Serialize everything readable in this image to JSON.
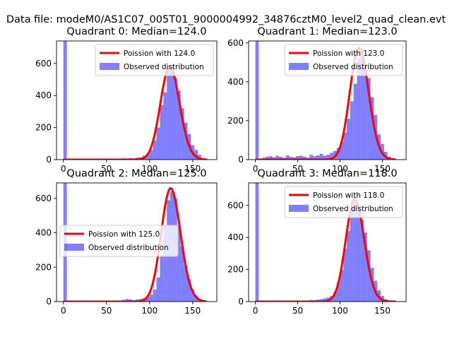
{
  "suptitle": "Data file: modeM0/AS1C07_005T01_9000004992_34876cztM0_level2_quad_clean.evt",
  "colors": {
    "poisson": "#ff0000",
    "observed": "#0000ff"
  },
  "chart_data": [
    {
      "type": "bar",
      "title": "Quadrant 0: Median=124.0",
      "median": 124.0,
      "xlim": [
        -8,
        178
      ],
      "ylim": [
        0,
        740
      ],
      "xticks": [
        0,
        50,
        100,
        150
      ],
      "yticks": [
        0,
        200,
        400,
        600
      ],
      "legend_loc": "top-right",
      "legend": [
        "Poission with 124.0",
        "Observed distribution"
      ],
      "poisson_peak": 580,
      "zero_bin": 740,
      "hist": {
        "bin_width": 4,
        "x": [
          64,
          68,
          72,
          76,
          80,
          84,
          88,
          92,
          96,
          100,
          104,
          108,
          112,
          116,
          120,
          124,
          128,
          132,
          136,
          140,
          144,
          148,
          152,
          156,
          160,
          164
        ],
        "y": [
          5,
          8,
          3,
          10,
          8,
          12,
          15,
          25,
          35,
          60,
          120,
          200,
          340,
          420,
          560,
          590,
          510,
          430,
          320,
          230,
          160,
          90,
          60,
          30,
          10,
          5
        ]
      }
    },
    {
      "type": "bar",
      "title": "Quadrant 1: Median=123.0",
      "median": 123.0,
      "xlim": [
        -8,
        178
      ],
      "ylim": [
        0,
        610
      ],
      "xticks": [
        0,
        50,
        100,
        150
      ],
      "yticks": [
        0,
        200,
        400,
        600
      ],
      "legend_loc": "top-right",
      "legend": [
        "Poission with 123.0",
        "Observed distribution"
      ],
      "poisson_peak": 575,
      "zero_bin": 610,
      "hist": {
        "bin_width": 4,
        "x": [
          8,
          12,
          16,
          20,
          24,
          28,
          32,
          36,
          40,
          44,
          48,
          52,
          56,
          60,
          64,
          68,
          72,
          76,
          80,
          84,
          88,
          92,
          96,
          100,
          104,
          108,
          112,
          116,
          120,
          124,
          128,
          132,
          136,
          140,
          144,
          148,
          152,
          156,
          160
        ],
        "y": [
          10,
          15,
          18,
          12,
          20,
          14,
          10,
          22,
          15,
          12,
          18,
          20,
          15,
          10,
          25,
          18,
          22,
          30,
          20,
          25,
          35,
          45,
          60,
          90,
          140,
          210,
          300,
          390,
          520,
          570,
          490,
          420,
          320,
          230,
          130,
          80,
          40,
          15,
          5
        ]
      }
    },
    {
      "type": "bar",
      "title": "Quadrant 2: Median=125.0",
      "median": 125.0,
      "xlim": [
        -8,
        178
      ],
      "ylim": [
        0,
        690
      ],
      "xticks": [
        0,
        50,
        100,
        150
      ],
      "yticks": [
        0,
        200,
        400,
        600
      ],
      "legend_loc": "center-left",
      "legend": [
        "Poission with 125.0",
        "Observed distribution"
      ],
      "poisson_peak": 660,
      "zero_bin": 690,
      "hist": {
        "bin_width": 4,
        "x": [
          68,
          72,
          76,
          80,
          84,
          88,
          92,
          96,
          100,
          104,
          108,
          112,
          116,
          120,
          124,
          128,
          132,
          136,
          140,
          144,
          148,
          152,
          156,
          160,
          164
        ],
        "y": [
          10,
          15,
          12,
          8,
          12,
          15,
          20,
          28,
          40,
          70,
          140,
          270,
          440,
          590,
          640,
          600,
          440,
          320,
          210,
          130,
          70,
          35,
          15,
          8,
          3
        ]
      }
    },
    {
      "type": "bar",
      "title": "Quadrant 3: Median=118.0",
      "median": 118.0,
      "xlim": [
        -8,
        178
      ],
      "ylim": [
        0,
        740
      ],
      "xticks": [
        0,
        50,
        100,
        150
      ],
      "yticks": [
        0,
        200,
        400,
        600
      ],
      "legend_loc": "top-right",
      "legend": [
        "Poission with 118.0",
        "Observed distribution"
      ],
      "poisson_peak": 640,
      "zero_bin": 740,
      "hist": {
        "bin_width": 4,
        "x": [
          64,
          68,
          72,
          76,
          80,
          84,
          88,
          92,
          96,
          100,
          104,
          108,
          112,
          116,
          120,
          124,
          128,
          132,
          136,
          140,
          144,
          148,
          152,
          156,
          160
        ],
        "y": [
          10,
          8,
          12,
          15,
          20,
          25,
          35,
          60,
          120,
          200,
          330,
          440,
          590,
          640,
          560,
          510,
          430,
          320,
          210,
          130,
          70,
          35,
          15,
          6,
          3
        ]
      }
    }
  ]
}
